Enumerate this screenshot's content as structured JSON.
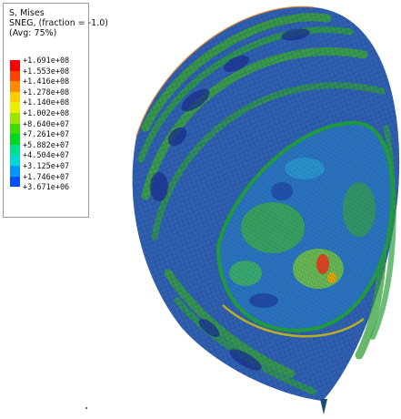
{
  "legend": {
    "variable": "S, Mises",
    "section": "SNEG, (fraction = -1.0)",
    "averaging": "(Avg: 75%)",
    "entries": [
      {
        "label": "+1.691e+08",
        "color": "#ff0000"
      },
      {
        "label": "+1.553e+08",
        "color": "#ff4400"
      },
      {
        "label": "+1.416e+08",
        "color": "#ff8a00"
      },
      {
        "label": "+1.278e+08",
        "color": "#ffcc00"
      },
      {
        "label": "+1.140e+08",
        "color": "#e8f000"
      },
      {
        "label": "+1.002e+08",
        "color": "#9ae600"
      },
      {
        "label": "+8.640e+07",
        "color": "#3fdc00"
      },
      {
        "label": "+7.261e+07",
        "color": "#00d820"
      },
      {
        "label": "+5.882e+07",
        "color": "#00e08a"
      },
      {
        "label": "+4.504e+07",
        "color": "#00d8d0"
      },
      {
        "label": "+3.125e+07",
        "color": "#0098ff"
      },
      {
        "label": "+1.746e+07",
        "color": "#0050ff"
      },
      {
        "label": "+3.671e+06",
        "color": "#0000ff"
      }
    ]
  }
}
